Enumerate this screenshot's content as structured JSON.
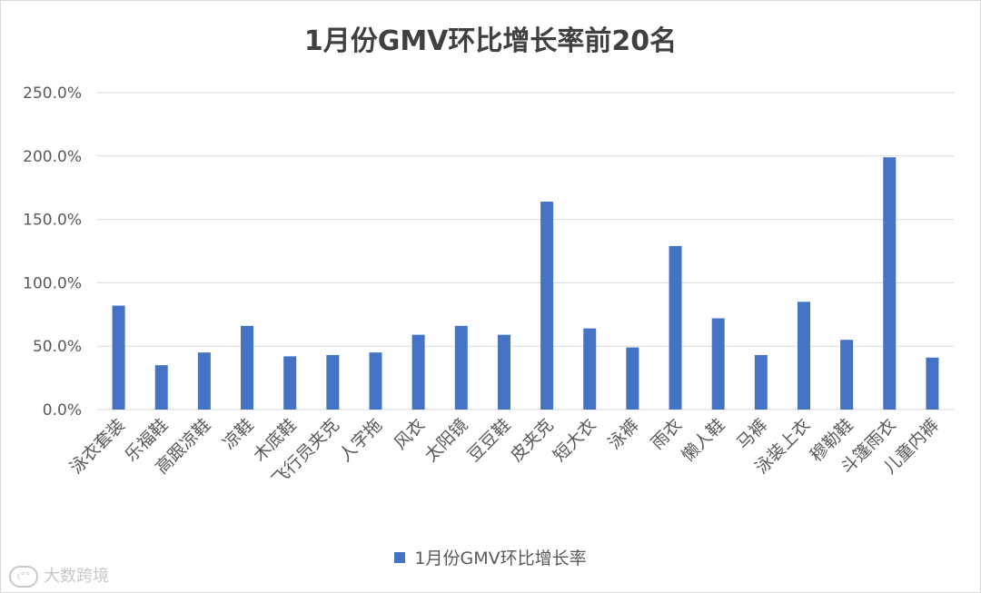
{
  "colors": {
    "bar": "#4472c4",
    "grid": "#d9d9d9",
    "text": "#595959"
  },
  "watermark": {
    "text": "大数跨境",
    "icon": "dashu-logo-icon"
  },
  "chart_data": {
    "type": "bar",
    "title": "1月份GMV环比增长率前20名",
    "xlabel": "",
    "ylabel": "",
    "ylim": [
      0,
      250
    ],
    "y_ticks": [
      "0.0%",
      "50.0%",
      "100.0%",
      "150.0%",
      "200.0%",
      "250.0%"
    ],
    "grid": true,
    "legend_position": "bottom",
    "categories": [
      "泳衣套装",
      "乐福鞋",
      "高跟凉鞋",
      "凉鞋",
      "木底鞋",
      "飞行员夹克",
      "人字拖",
      "风衣",
      "太阳镜",
      "豆豆鞋",
      "皮夹克",
      "短大衣",
      "泳裤",
      "雨衣",
      "懒人鞋",
      "马裤",
      "泳装上衣",
      "穆勒鞋",
      "斗篷雨衣",
      "儿童内裤"
    ],
    "series": [
      {
        "name": "1月份GMV环比增长率",
        "values": [
          82,
          35,
          45,
          66,
          42,
          43,
          45,
          59,
          66,
          59,
          164,
          64,
          49,
          129,
          72,
          43,
          85,
          55,
          199,
          41
        ]
      }
    ]
  }
}
